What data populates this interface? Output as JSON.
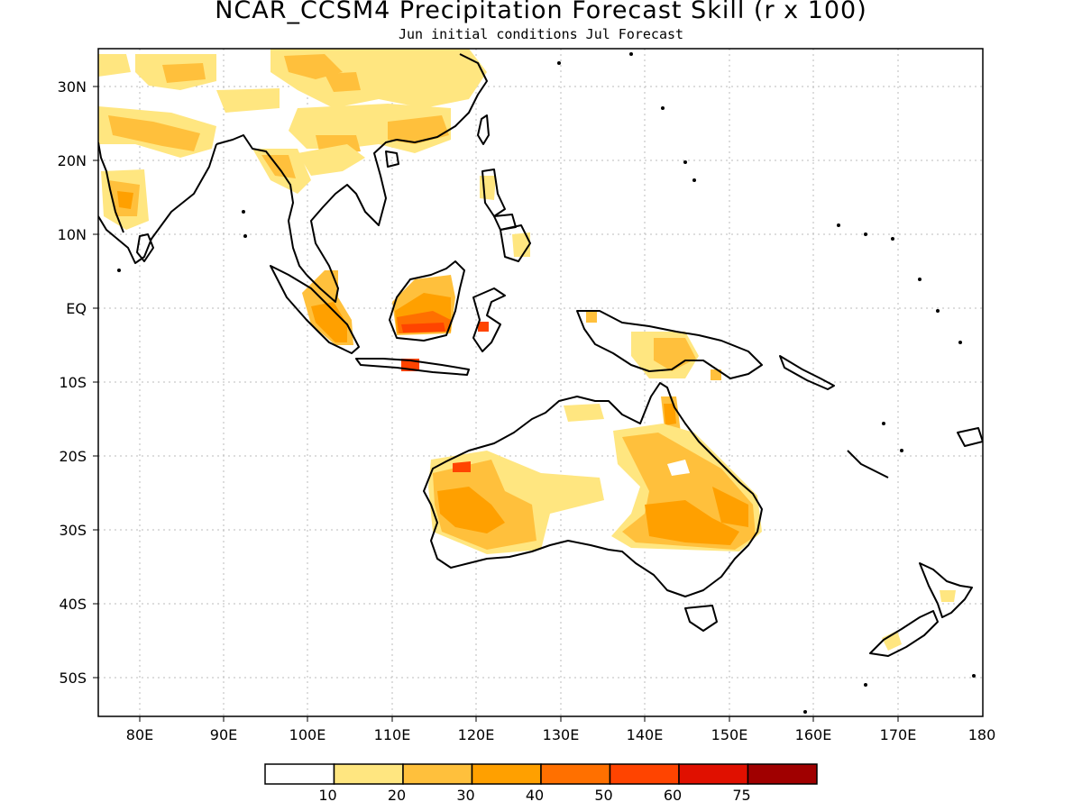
{
  "title": "NCAR_CCSM4 Precipitation Forecast Skill (r x 100)",
  "subtitle": "Jun initial conditions  Jul Forecast",
  "map": {
    "lon_range": [
      75,
      180
    ],
    "lat_range": [
      -55,
      35
    ],
    "grid": true,
    "x_ticks": [
      "80E",
      "90E",
      "100E",
      "110E",
      "120E",
      "130E",
      "140E",
      "150E",
      "160E",
      "170E",
      "180"
    ],
    "y_ticks": [
      "30N",
      "20N",
      "10N",
      "EQ",
      "10S",
      "20S",
      "30S",
      "40S",
      "50S"
    ]
  },
  "colorbar": {
    "labels": [
      "10",
      "20",
      "30",
      "40",
      "50",
      "60",
      "75"
    ],
    "colors": [
      "#ffffff",
      "#ffe680",
      "#ffc03c",
      "#ffa000",
      "#ff7000",
      "#ff4400",
      "#e01000",
      "#a00000"
    ]
  }
}
